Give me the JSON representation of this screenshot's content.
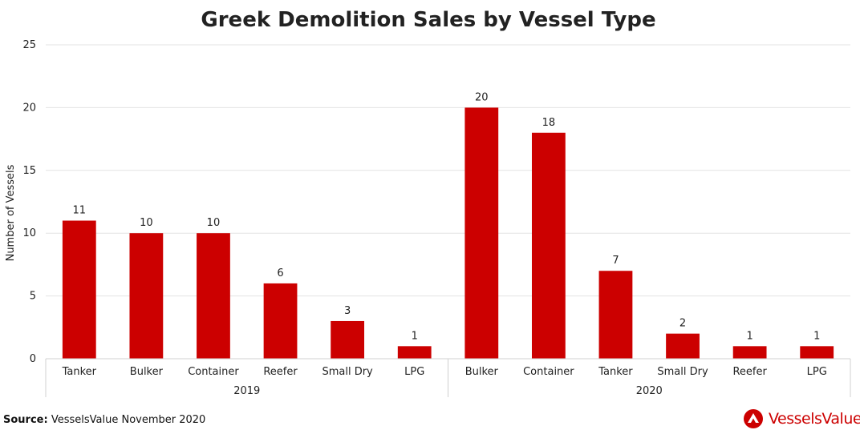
{
  "chart_data": {
    "type": "bar",
    "title": "Greek Demolition Sales by Vessel Type",
    "ylabel": "Number of Vessels",
    "ylim": [
      0,
      25
    ],
    "yticks": [
      0,
      5,
      10,
      15,
      20,
      25
    ],
    "grid": true,
    "bar_color": "#cc0000",
    "groups": [
      {
        "name": "2019",
        "categories": [
          "Tanker",
          "Bulker",
          "Container",
          "Reefer",
          "Small Dry",
          "LPG"
        ],
        "values": [
          11,
          10,
          10,
          6,
          3,
          1
        ]
      },
      {
        "name": "2020",
        "categories": [
          "Bulker",
          "Container",
          "Tanker",
          "Small Dry",
          "Reefer",
          "LPG"
        ],
        "values": [
          20,
          18,
          7,
          2,
          1,
          1
        ]
      }
    ]
  },
  "footer": {
    "source_label": "Source:",
    "source_text": "VesselsValue November 2020",
    "logo_text": "VesselsValue",
    "brand_color": "#cc0000"
  }
}
